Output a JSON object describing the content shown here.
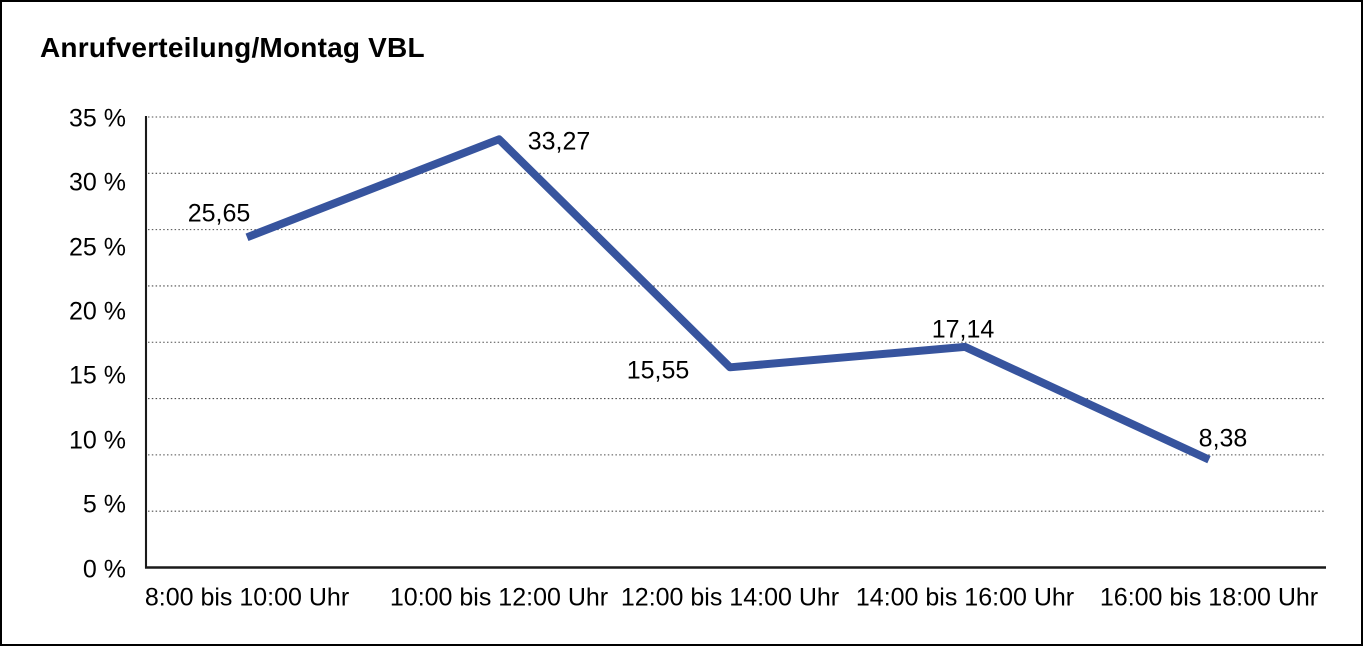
{
  "chart_data": {
    "type": "line",
    "title": "Anrufverteilung/Montag VBL",
    "categories": [
      "8:00 bis 10:00 Uhr",
      "10:00 bis 12:00 Uhr",
      "12:00 bis 14:00 Uhr",
      "14:00 bis 16:00 Uhr",
      "16:00 bis 18:00 Uhr"
    ],
    "series": [
      {
        "name": "Anrufverteilung Montag VBL",
        "values": [
          25.65,
          33.27,
          15.55,
          17.14,
          8.38
        ],
        "point_labels": [
          "25,65",
          "33,27",
          "15,55",
          "17,14",
          "8,38"
        ]
      }
    ],
    "xlabel": "",
    "ylabel": "",
    "ylim": [
      0,
      35
    ],
    "y_tick_values": [
      0,
      5,
      10,
      15,
      20,
      25,
      30,
      35
    ],
    "y_tick_labels": [
      "0 %",
      "5 %",
      "10 %",
      "15 %",
      "20 %",
      "25 %",
      "30 %",
      "35 %"
    ],
    "grid": {
      "style": "dotted",
      "orientation": "horizontal",
      "divisions": 8,
      "color": "#4d4d4d"
    },
    "legend_position": "none",
    "colors": {
      "line": "#37549E",
      "text": "#000000",
      "axis": "#1a1a1a",
      "background": "#ffffff",
      "frame_border": "#000000"
    }
  }
}
